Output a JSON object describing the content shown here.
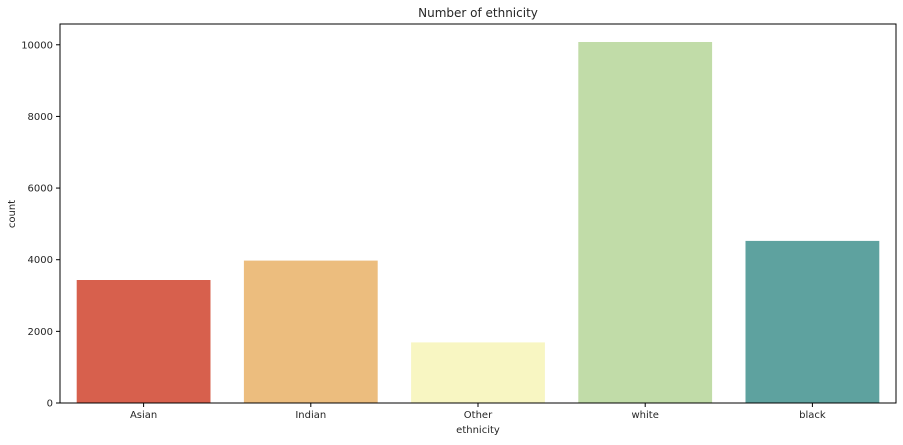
{
  "chart_data": {
    "type": "bar",
    "title": "Number of ethnicity",
    "xlabel": "ethnicity",
    "ylabel": "count",
    "categories": [
      "Asian",
      "Indian",
      "Other",
      "white",
      "black"
    ],
    "values": [
      3434,
      3975,
      1692,
      10078,
      4526
    ],
    "colors": [
      "#d7604d",
      "#ecbd7e",
      "#f8f6c2",
      "#c1dca8",
      "#5ea29f"
    ],
    "ylim": [
      0,
      10580
    ],
    "yticks": [
      0,
      2000,
      4000,
      6000,
      8000,
      10000
    ],
    "grid": false,
    "legend": "none"
  }
}
